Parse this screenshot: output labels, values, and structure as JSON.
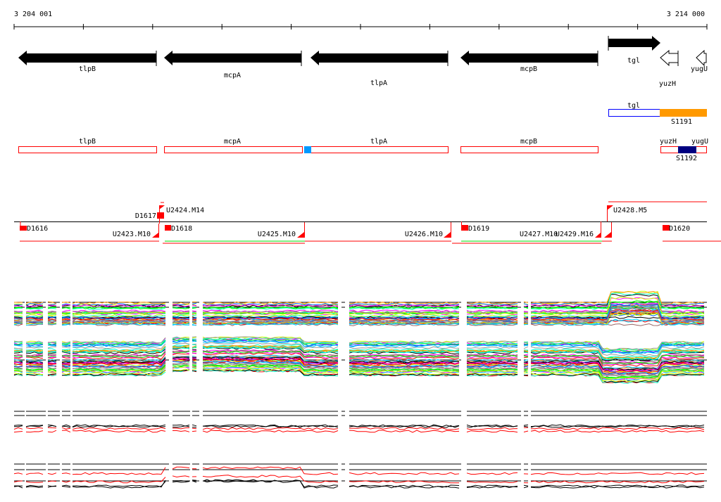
{
  "ruler": {
    "start": "3 204 001",
    "end": "3 214 000"
  },
  "genes": [
    {
      "name": "tlpB",
      "strand": "-"
    },
    {
      "name": "mcpA",
      "strand": "-"
    },
    {
      "name": "tlpA",
      "strand": "-"
    },
    {
      "name": "mcpB",
      "strand": "-"
    },
    {
      "name": "tgl",
      "strand": "+"
    },
    {
      "name": "yuzH",
      "strand": "-"
    },
    {
      "name": "yugU",
      "strand": "-"
    }
  ],
  "segments1": {
    "gene": "tgl",
    "segment": "S1191"
  },
  "segments2": {
    "tlpB": "tlpB",
    "mcpA": "mcpA",
    "tlpA": "tlpA",
    "mcpB": "mcpB",
    "yuzH": "yuzH",
    "yugU": "yugU",
    "segment": "S1192"
  },
  "features": {
    "D1616": "D1616",
    "D1617": "D1617",
    "D1618": "D1618",
    "D1619": "D1619",
    "D1620": "D1620",
    "U2423": "U2423.M10",
    "U2424": "U2424.M14",
    "U2425": "U2425.M10",
    "U2426": "U2426.M10",
    "U2427": "U2427.M10",
    "U2429": "U2429.M16",
    "U2428": "U2428.M5"
  },
  "colors": {
    "gene": "#000000",
    "feature": "#ff0000",
    "orange": "#ff9900",
    "navy": "#000080",
    "blue": "#0000ff",
    "cyan": "#0099ff",
    "green": "#00dd00"
  }
}
